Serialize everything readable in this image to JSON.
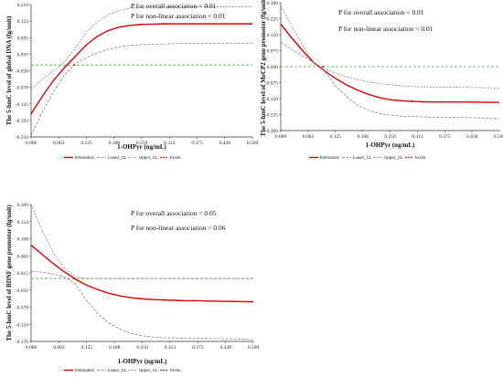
{
  "colors": {
    "estimation": "#dd0000",
    "ci": "#777777",
    "reference": "#44aa44",
    "knots": "#dd0000",
    "axis": "#333333"
  },
  "legend": {
    "estimation": "Estimation",
    "lower": "Lower_CL",
    "upper": "Upper_CL",
    "knots": "Knots"
  },
  "chart_data": [
    {
      "type": "line",
      "xlabel": "1-OHPyr (ng/mL)",
      "ylabel": "The 5-hmC level of global DNA (fg/unit)",
      "annotations": [
        "P for overall association < 0.01",
        "P for non-linear association < 0.01"
      ],
      "xlim": [
        0,
        0.5
      ],
      "ylim": [
        -0.25,
        0.21
      ],
      "x_ticks": [
        "0.000",
        "0.063",
        "0.125",
        "0.188",
        "0.250",
        "0.313",
        "0.375",
        "0.438",
        "0.500"
      ],
      "y_ticks": [
        "-0.250",
        "-0.193",
        "-0.135",
        "-0.078",
        "-0.020",
        "0.037",
        "0.095",
        "0.152",
        "0.210"
      ],
      "reference_y": 0.0,
      "x": [
        0,
        0.025,
        0.05,
        0.075,
        0.1,
        0.125,
        0.15,
        0.175,
        0.2,
        0.225,
        0.25,
        0.275,
        0.3,
        0.325,
        0.35,
        0.375,
        0.4,
        0.45,
        0.5
      ],
      "series": [
        {
          "key": "estimation",
          "values": [
            -0.17,
            -0.11,
            -0.055,
            -0.01,
            0.03,
            0.07,
            0.1,
            0.12,
            0.132,
            0.138,
            0.141,
            0.142,
            0.143,
            0.143,
            0.143,
            0.143,
            0.143,
            0.143,
            0.143
          ]
        },
        {
          "key": "lower",
          "values": [
            -0.245,
            -0.165,
            -0.095,
            -0.035,
            0.005,
            0.025,
            0.042,
            0.055,
            0.063,
            0.068,
            0.071,
            0.072,
            0.073,
            0.074,
            0.075,
            0.075,
            0.075,
            0.075,
            0.075
          ]
        },
        {
          "key": "upper",
          "values": [
            -0.085,
            -0.05,
            -0.02,
            0.01,
            0.058,
            0.115,
            0.15,
            0.175,
            0.19,
            0.198,
            0.2,
            0.201,
            0.202,
            0.202,
            0.202,
            0.202,
            0.202,
            0.202,
            0.202
          ]
        }
      ],
      "knots": [
        {
          "x": 0.097,
          "y": 0.0
        },
        {
          "x": 0.3,
          "y": 0.143
        },
        {
          "x": 0.365,
          "y": 0.143
        }
      ]
    },
    {
      "type": "line",
      "xlabel": "1-OHPyr (ng/mL)",
      "ylabel": "The 5-hmC level of MeCP2 gene promotor (fg/unit)",
      "annotations": [
        "P for overall association < 0.01",
        "P for non-linear association < 0.01"
      ],
      "xlim": [
        0,
        0.5
      ],
      "ylim": [
        -0.3,
        0.3
      ],
      "x_ticks": [
        "0.000",
        "0.063",
        "0.125",
        "0.188",
        "0.250",
        "0.313",
        "0.375",
        "0.438",
        "0.500"
      ],
      "y_ticks": [
        "-0.300",
        "-0.225",
        "-0.150",
        "-0.075",
        "0.000",
        "0.075",
        "0.150",
        "0.225",
        "0.300"
      ],
      "reference_y": 0.0,
      "x": [
        0,
        0.025,
        0.05,
        0.075,
        0.1,
        0.125,
        0.15,
        0.175,
        0.2,
        0.225,
        0.25,
        0.275,
        0.3,
        0.325,
        0.35,
        0.375,
        0.4,
        0.45,
        0.5
      ],
      "series": [
        {
          "key": "estimation",
          "values": [
            0.2,
            0.135,
            0.075,
            0.02,
            -0.02,
            -0.055,
            -0.085,
            -0.11,
            -0.13,
            -0.145,
            -0.155,
            -0.16,
            -0.163,
            -0.165,
            -0.166,
            -0.166,
            -0.166,
            -0.167,
            -0.168
          ]
        },
        {
          "key": "lower",
          "values": [
            0.115,
            0.08,
            0.05,
            0.02,
            -0.02,
            -0.09,
            -0.14,
            -0.18,
            -0.205,
            -0.22,
            -0.228,
            -0.232,
            -0.234,
            -0.236,
            -0.237,
            -0.238,
            -0.238,
            -0.24,
            -0.245
          ]
        },
        {
          "key": "upper",
          "values": [
            0.285,
            0.19,
            0.1,
            0.02,
            -0.01,
            -0.03,
            -0.048,
            -0.06,
            -0.072,
            -0.08,
            -0.085,
            -0.09,
            -0.093,
            -0.095,
            -0.096,
            -0.097,
            -0.097,
            -0.098,
            -0.1
          ]
        }
      ],
      "knots": [
        {
          "x": 0.097,
          "y": 0.0
        },
        {
          "x": 0.3,
          "y": -0.163
        },
        {
          "x": 0.365,
          "y": -0.166
        }
      ]
    },
    {
      "type": "line",
      "xlabel": "1-OHPyr (ng/mL)",
      "ylabel": "The 5-hmC level of BDNF gene promotor (fg/unit)",
      "annotations": [
        "P for overall association = 0.05",
        "P for non-linear association = 0.06"
      ],
      "xlim": [
        0,
        0.5
      ],
      "ylim": [
        -0.17,
        0.2
      ],
      "x_ticks": [
        "0.000",
        "0.063",
        "0.125",
        "0.188",
        "0.250",
        "0.313",
        "0.375",
        "0.438",
        "0.500"
      ],
      "y_ticks": [
        "-0.170",
        "-0.124",
        "-0.078",
        "-0.031",
        "0.015",
        "0.061",
        "0.108",
        "0.154",
        "0.200"
      ],
      "reference_y": 0.0,
      "x": [
        0,
        0.025,
        0.05,
        0.075,
        0.1,
        0.125,
        0.15,
        0.175,
        0.2,
        0.225,
        0.25,
        0.275,
        0.3,
        0.325,
        0.35,
        0.375,
        0.4,
        0.45,
        0.5
      ],
      "series": [
        {
          "key": "estimation",
          "values": [
            0.09,
            0.065,
            0.04,
            0.018,
            -0.002,
            -0.018,
            -0.03,
            -0.04,
            -0.047,
            -0.052,
            -0.055,
            -0.057,
            -0.058,
            -0.059,
            -0.06,
            -0.06,
            -0.061,
            -0.062,
            -0.063
          ]
        },
        {
          "key": "lower",
          "values": [
            0.02,
            0.017,
            0.012,
            0.005,
            -0.015,
            -0.06,
            -0.095,
            -0.12,
            -0.137,
            -0.148,
            -0.155,
            -0.158,
            -0.16,
            -0.161,
            -0.162,
            -0.162,
            -0.162,
            -0.163,
            -0.165
          ]
        },
        {
          "key": "upper",
          "values": [
            0.2,
            0.13,
            0.07,
            0.028,
            0.005,
            0.0,
            0.0,
            0.0,
            0.0,
            0.0,
            0.0,
            0.0,
            0.0,
            0.0,
            0.0,
            0.0,
            0.0,
            0.0,
            0.0
          ]
        }
      ],
      "knots": [
        {
          "x": 0.097,
          "y": 0.0
        },
        {
          "x": 0.3,
          "y": -0.058
        },
        {
          "x": 0.365,
          "y": -0.06
        }
      ]
    }
  ]
}
